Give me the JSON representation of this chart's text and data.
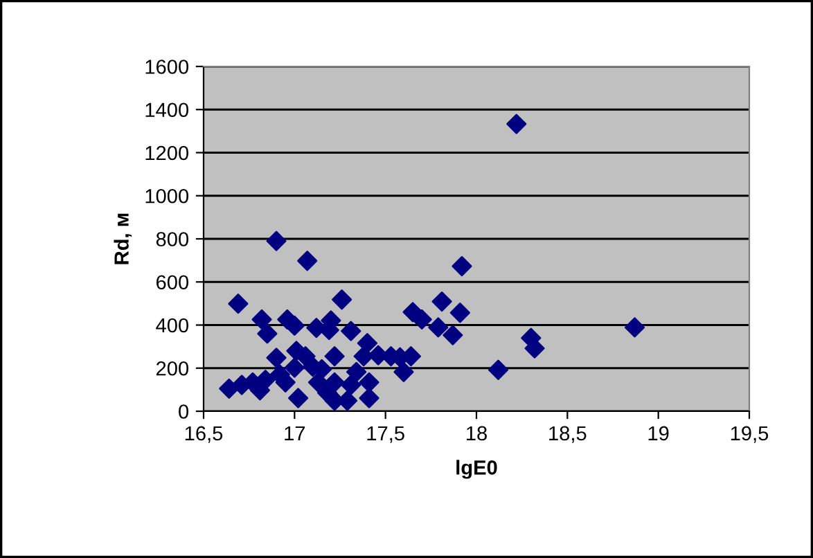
{
  "chart_data": {
    "type": "scatter",
    "xlabel": "lgE0",
    "ylabel": "Rd, м",
    "xlim": [
      16.5,
      19.5
    ],
    "xticks": [
      {
        "value": 16.5,
        "label": "16,5"
      },
      17,
      {
        "value": 17.5,
        "label": "17,5"
      },
      18,
      {
        "value": 18.5,
        "label": "18,5"
      },
      19,
      {
        "value": 19.5,
        "label": "19,5"
      }
    ],
    "ylim": [
      0,
      1600
    ],
    "yticks": [
      0,
      200,
      400,
      600,
      800,
      1000,
      1200,
      1400,
      1600
    ],
    "grid": "y",
    "marker": "diamond",
    "legend": false,
    "series": [
      {
        "color": "#000080",
        "x": [
          18.22,
          16.9,
          17.07,
          17.92,
          16.69,
          17.81,
          17.26,
          17.91,
          17.65,
          17.7,
          17.79,
          17.87,
          18.87,
          18.3,
          18.32,
          18.12,
          16.82,
          16.85,
          16.96,
          17.0,
          17.12,
          17.16,
          17.2,
          17.19,
          17.31,
          16.9,
          17.01,
          17.06,
          17.22,
          17.4,
          17.38,
          17.46,
          17.53,
          17.58,
          17.64,
          17.6,
          16.64,
          16.71,
          16.77,
          16.81,
          16.86,
          16.95,
          17.0,
          17.02,
          17.1,
          17.13,
          17.18,
          17.22,
          17.27,
          17.31,
          17.29,
          17.22,
          17.41,
          17.41,
          17.34,
          17.15,
          16.84,
          16.92
        ],
        "values": [
          1333,
          790,
          698,
          673,
          499,
          509,
          518,
          457,
          460,
          426,
          389,
          353,
          389,
          340,
          292,
          192,
          426,
          360,
          426,
          397,
          387,
          null,
          421,
          377,
          372,
          248,
          280,
          255,
          255,
          316,
          255,
          260,
          255,
          250,
          255,
          182,
          105,
          122,
          134,
          97,
          null,
          134,
          202,
          61,
          207,
          134,
          85,
          134,
          null,
          122,
          49,
          49,
          134,
          61,
          182,
          195,
          146,
          170
        ]
      }
    ]
  }
}
